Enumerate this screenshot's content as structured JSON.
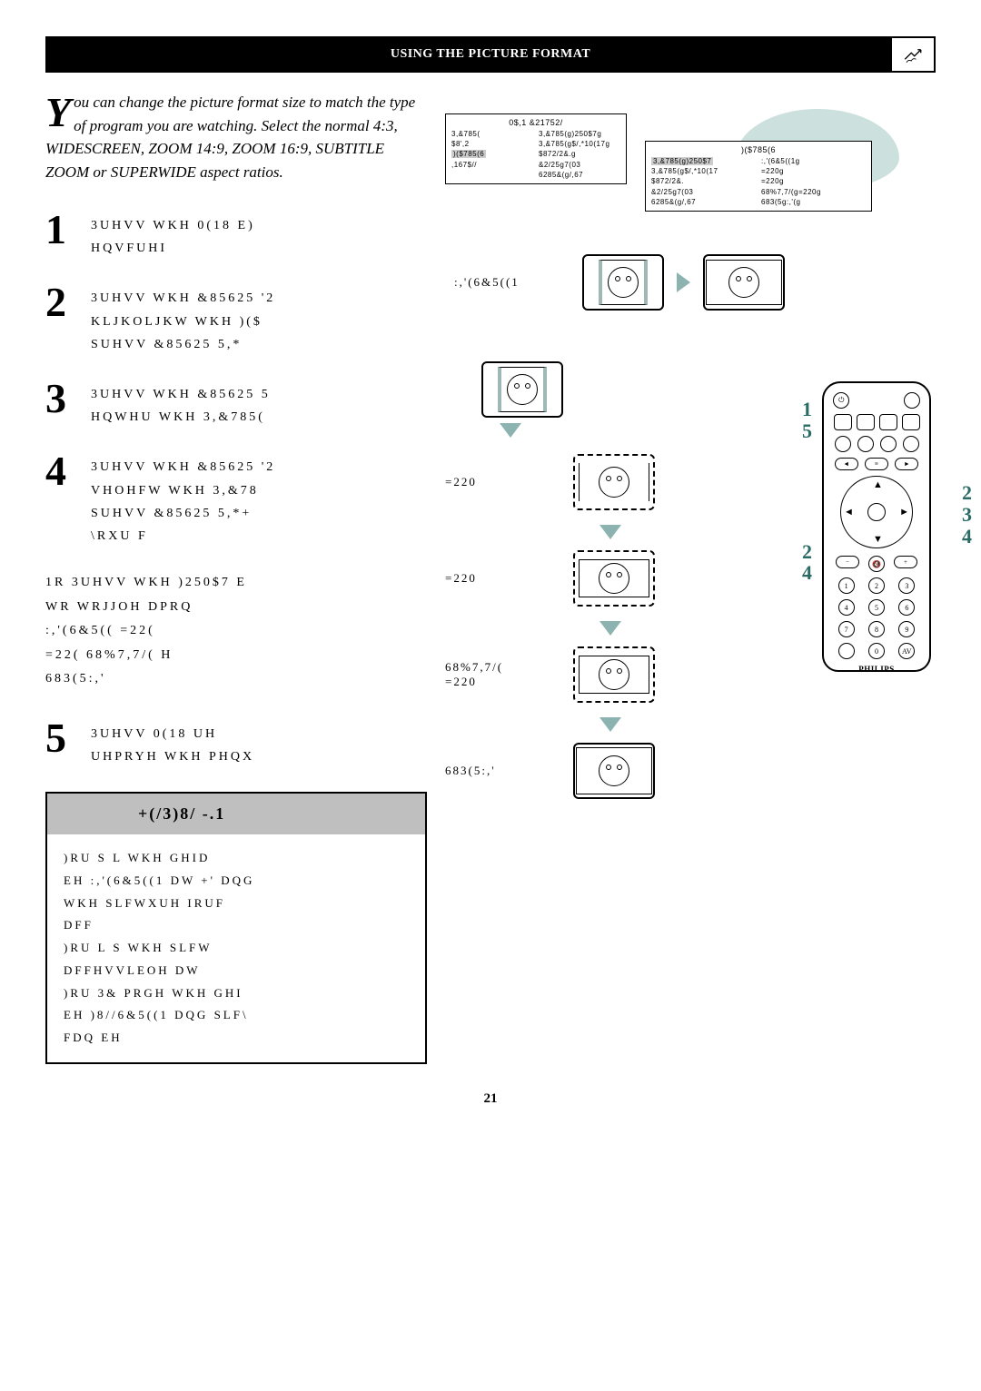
{
  "header": {
    "title": "USING THE PICTURE FORMAT"
  },
  "intro": {
    "dropcap": "Y",
    "text": "ou can change the picture format size to match the type of program you are watching. Select the normal 4:3, WIDESCREEN, ZOOM 14:9, ZOOM 16:9, SUBTITLE ZOOM or SUPERWIDE aspect ratios."
  },
  "steps": [
    {
      "num": "1",
      "text": "3UHVV WKH 0(18 E)\nHQVFUHI"
    },
    {
      "num": "2",
      "text": "3UHVV WKH &85625 '2\nKLJKOLJKW WKH )($\nSUHVV &85625 5,*"
    },
    {
      "num": "3",
      "text": "3UHVV WKH &85625 5\nHQWHU WKH 3,&785("
    },
    {
      "num": "4",
      "text": "3UHVV WKH &85625 '2\nVHOHFW WKH 3,&78\nSUHVV &85625 5,*+\n\\RXU F"
    }
  ],
  "note": "1R 3UHVV WKH )250$7 E\n     WR WRJJOH DPRQ\n   :,'(6&5((    =22(\n=22(      68%7,7/( H\n683(5:,'",
  "step5": {
    "num": "5",
    "text": "3UHVV 0(18 UH\nUHPRYH WKH PHQX"
  },
  "hint": {
    "title": "+(/3)8/ -.1",
    "body": ")RU    S    L WKH GHID\nEH :,'(6&5((1 DW +' DQG\nWKH SLFWXUH IRUF\nDFF\n)RU    L    S WKH SLFW\nDFFHVVLEOH DW\n)RU 3& PRGH  WKH GHI\nEH )8//6&5((1 DQG SLF\\\nFDQ EH"
  },
  "pageNumber": "21",
  "menu": {
    "mainTitle": "0$,1 &21752/",
    "mainLeft": [
      "3,&785(",
      "$8',2",
      ")($785(6",
      ",167$//"
    ],
    "mainRight": [
      "3,&785(g)250$7g",
      "3,&785(g$/,*10(17g",
      "$872/2&.g",
      "&2/25g7(03",
      "6285&(g/,67"
    ],
    "subTitle": ")($785(6",
    "subLeft": [
      "3,&785(g)250$7",
      "3,&785(g$/,*10(17",
      "$872/2&.",
      "&2/25g7(03",
      "6285&(g/,67"
    ],
    "subRight": [
      ":,'(6&5((1g",
      "=220g",
      "=220g",
      "68%7,7/(g=220g",
      "683(5g:,'(g"
    ],
    "subRightVals": [
      "",
      "",
      "",
      "",
      ""
    ]
  },
  "formats": {
    "widescreen": ":,'(6&5((1",
    "zoom1": "=220",
    "zoom2": "=220",
    "subtitle": "68%7,7/(\n=220",
    "superwide": "683(5:,'"
  },
  "remote": {
    "brand": "PHILIPS",
    "keypad": [
      "1",
      "2",
      "3",
      "4",
      "5",
      "6",
      "7",
      "8",
      "9",
      "",
      "0",
      "AV"
    ]
  },
  "colors": {
    "accent": "#2a6b65",
    "mint": "#8db3b0",
    "hintBg": "#bfbfbf"
  }
}
